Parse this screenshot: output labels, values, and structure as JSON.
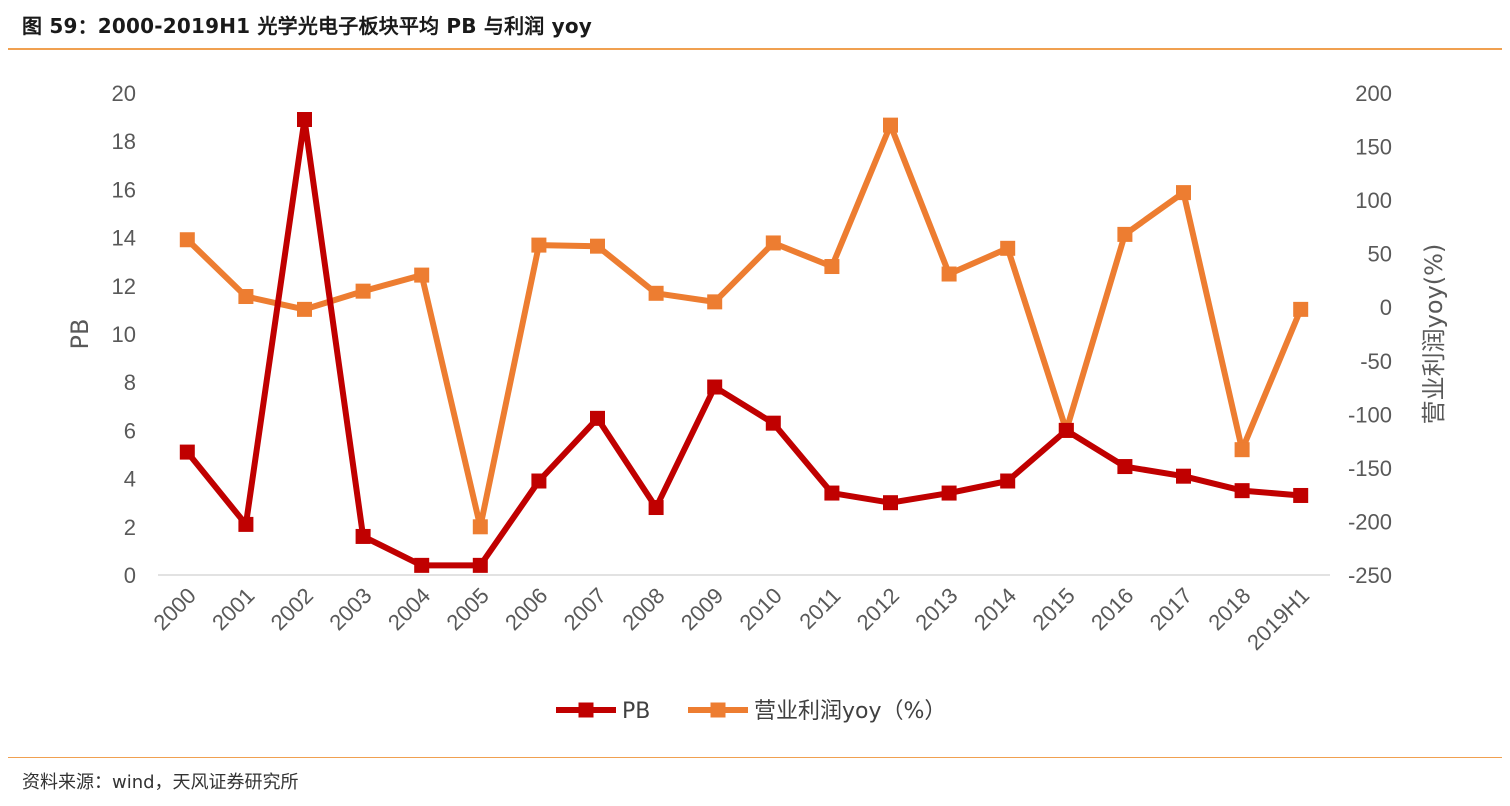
{
  "title": "图 59：2000-2019H1 光学光电子板块平均 PB 与利润 yoy",
  "source": "资料来源：wind，天风证券研究所",
  "chart_data": {
    "type": "line",
    "categories": [
      "2000",
      "2001",
      "2002",
      "2003",
      "2004",
      "2005",
      "2006",
      "2007",
      "2008",
      "2009",
      "2010",
      "2011",
      "2012",
      "2013",
      "2014",
      "2015",
      "2016",
      "2017",
      "2018",
      "2019H1"
    ],
    "series": [
      {
        "name": "PB",
        "axis": "left",
        "color": "#c00000",
        "values": [
          5.1,
          2.1,
          18.9,
          1.6,
          0.4,
          0.4,
          3.9,
          6.5,
          2.8,
          7.8,
          6.3,
          3.4,
          3.0,
          3.4,
          3.9,
          6.0,
          4.5,
          4.1,
          3.5,
          3.3
        ]
      },
      {
        "name": "营业利润yoy（%）",
        "axis": "right",
        "color": "#ed7d31",
        "values": [
          63,
          10,
          -2,
          15,
          30,
          -205,
          58,
          57,
          13,
          5,
          60,
          38,
          170,
          31,
          55,
          -115,
          68,
          107,
          -133,
          -2
        ]
      }
    ],
    "ylabel": "PB",
    "ylim": [
      0,
      20
    ],
    "yticks": [
      0,
      2,
      4,
      6,
      8,
      10,
      12,
      14,
      16,
      18,
      20
    ],
    "y2label": "营业利润yoy(%)",
    "y2lim": [
      -250,
      200
    ],
    "y2ticks": [
      -250,
      -200,
      -150,
      -100,
      -50,
      0,
      50,
      100,
      150,
      200
    ],
    "grid": false,
    "legend_position": "bottom"
  }
}
